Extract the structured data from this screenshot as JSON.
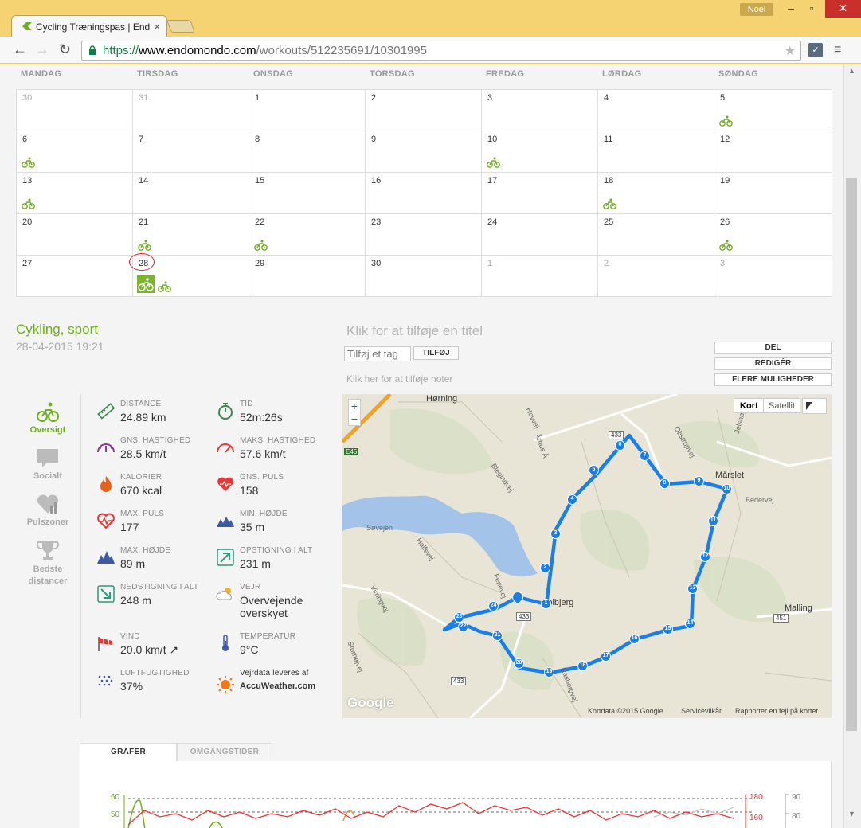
{
  "browser": {
    "tab_title": "Cycling Træningspas | End",
    "user": "Noel",
    "url_scheme": "https://",
    "url_host": "www.endomondo.com",
    "url_path": "/workouts/512235691/10301995"
  },
  "calendar": {
    "days": [
      "MANDAG",
      "TIRSDAG",
      "ONSDAG",
      "TORSDAG",
      "FREDAG",
      "LØRDAG",
      "SØNDAG"
    ],
    "weeks": [
      [
        {
          "n": "30",
          "dim": true
        },
        {
          "n": "31",
          "dim": true
        },
        {
          "n": "1"
        },
        {
          "n": "2"
        },
        {
          "n": "3"
        },
        {
          "n": "4"
        },
        {
          "n": "5",
          "bike": true
        }
      ],
      [
        {
          "n": "6",
          "bike": true
        },
        {
          "n": "7"
        },
        {
          "n": "8"
        },
        {
          "n": "9"
        },
        {
          "n": "10",
          "bike": true
        },
        {
          "n": "11"
        },
        {
          "n": "12"
        }
      ],
      [
        {
          "n": "13",
          "bike": true
        },
        {
          "n": "14"
        },
        {
          "n": "15"
        },
        {
          "n": "16"
        },
        {
          "n": "17"
        },
        {
          "n": "18",
          "bike": true
        },
        {
          "n": "19"
        }
      ],
      [
        {
          "n": "20"
        },
        {
          "n": "21",
          "bike": true
        },
        {
          "n": "22",
          "bike": true
        },
        {
          "n": "23"
        },
        {
          "n": "24"
        },
        {
          "n": "25"
        },
        {
          "n": "26",
          "bike": true
        }
      ],
      [
        {
          "n": "27"
        },
        {
          "n": "28",
          "today": true
        },
        {
          "n": "29"
        },
        {
          "n": "30"
        },
        {
          "n": "1",
          "dim": true
        },
        {
          "n": "2",
          "dim": true
        },
        {
          "n": "3",
          "dim": true
        }
      ]
    ]
  },
  "workout": {
    "sport": "Cykling, sport",
    "datetime": "28-04-2015 19:21",
    "title_placeholder": "Klik for at tilføje en titel",
    "tag_placeholder": "Tilføj et tag",
    "tag_button": "TILFØJ",
    "notes_placeholder": "Klik her for at tilføje noter",
    "actions": [
      "DEL",
      "REDIGÉR",
      "FLERE MULIGHEDER"
    ]
  },
  "sidenav": [
    {
      "label": "Oversigt",
      "active": true
    },
    {
      "label": "Socialt"
    },
    {
      "label": "Pulszoner"
    },
    {
      "label": "Bedste distancer"
    }
  ],
  "stats": {
    "distance": {
      "label": "DISTANCE",
      "value": "24.89 km"
    },
    "time": {
      "label": "TID",
      "value": "52m:26s"
    },
    "avg_speed": {
      "label": "GNS. HASTIGHED",
      "value": "28.5 km/t"
    },
    "max_speed": {
      "label": "MAKS. HASTIGHED",
      "value": "57.6 km/t"
    },
    "calories": {
      "label": "KALORIER",
      "value": "670 kcal"
    },
    "avg_hr": {
      "label": "GNS. PULS",
      "value": "158"
    },
    "max_hr": {
      "label": "MAX. PULS",
      "value": "177"
    },
    "min_alt": {
      "label": "MIN. HØJDE",
      "value": "35 m"
    },
    "max_alt": {
      "label": "MAX. HØJDE",
      "value": "89 m"
    },
    "ascent": {
      "label": "OPSTIGNING I ALT",
      "value": "231 m"
    },
    "descent": {
      "label": "NEDSTIGNING I ALT",
      "value": "248 m"
    },
    "weather": {
      "label": "VEJR",
      "value_line1": "Overvejende",
      "value_line2": "overskyet"
    },
    "wind": {
      "label": "VIND",
      "value": "20.0 km/t ↗"
    },
    "temperature": {
      "label": "TEMPERATUR",
      "value": "9°C"
    },
    "humidity": {
      "label": "LUFTFUGTIGHED",
      "value": "37%"
    },
    "weather_source_line1": "Vejrdata leveres af",
    "weather_source_line2": "AccuWeather.com"
  },
  "map": {
    "zoom_in": "+",
    "zoom_out": "−",
    "type_map": "Kort",
    "type_sat": "Satellit",
    "places": [
      "Hørning",
      "Mårslet",
      "Malling",
      "Solbjerg"
    ],
    "roads": [
      "Søvejen",
      "Halfsvej",
      "Virringvej",
      "Storhøjvej",
      "Blegindvej",
      "Hovvej",
      "Bedervej",
      "Obstrupvej",
      "Jelshøjvej",
      "Rasborgvej",
      "Ferievej",
      "Århus Å"
    ],
    "road_numbers": [
      "433",
      "433",
      "433",
      "451",
      "E45"
    ],
    "google": "Google",
    "footer_data": "Kortdata ©2015 Google",
    "footer_terms": "Servicevilkår",
    "footer_report": "Rapporter en fejl på kortet",
    "laps": [
      "1",
      "2",
      "3",
      "4",
      "5",
      "6",
      "7",
      "8",
      "9",
      "10",
      "11",
      "12",
      "13",
      "14",
      "15",
      "16",
      "17",
      "18",
      "19",
      "20",
      "21",
      "22",
      "23",
      "24"
    ]
  },
  "graphs": {
    "tabs": [
      "GRAFER",
      "OMGANGSTIDER"
    ],
    "left_axis": [
      "60",
      "50"
    ],
    "right_axis_hr": [
      "180",
      "160"
    ],
    "right_axis_other": [
      "90",
      "80"
    ]
  },
  "colors": {
    "accent": "#6fae1e",
    "route": "#1a7ee8",
    "hr": "#e33"
  }
}
